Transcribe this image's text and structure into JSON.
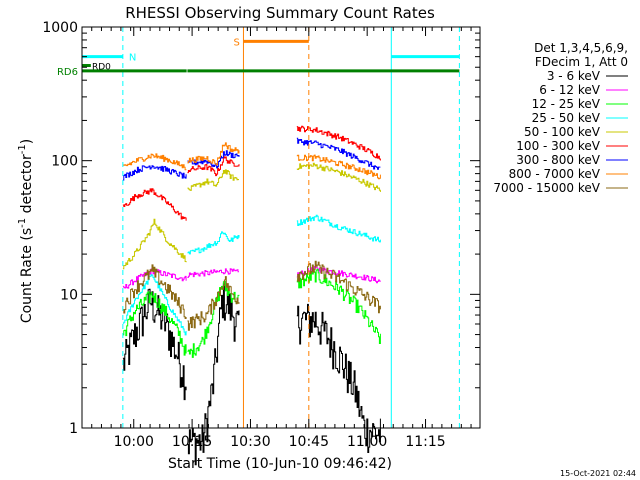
{
  "colors": {
    "background": "#ffffff",
    "axes": "#000000",
    "night": "#00ffff",
    "saa": "#ff8000",
    "attenuator": "#008000"
  },
  "chart_data": {
    "type": "line",
    "title": "RHESSI Observing Summary Count Rates",
    "xlabel": "Start Time (10-Jun-10 09:46:42)",
    "ylabel_main": "Count Rate (s",
    "ylabel_sup": "-1",
    "ylabel_tail": " detector",
    "ylabel_end": ")",
    "ylog": true,
    "ylim": [
      1,
      1000
    ],
    "xlim": [
      "09:46:42",
      "11:29:00"
    ],
    "x_unit": "minutes after 09:46:42",
    "y_ticks": [
      {
        "v": 1,
        "label": "1"
      },
      {
        "v": 10,
        "label": "10"
      },
      {
        "v": 100,
        "label": "100"
      },
      {
        "v": 1000,
        "label": "1000"
      }
    ],
    "x_ticks": [
      {
        "t": 13.3,
        "label": "10:00"
      },
      {
        "t": 28.3,
        "label": "10:15"
      },
      {
        "t": 43.3,
        "label": "10:30"
      },
      {
        "t": 58.3,
        "label": "10:45"
      },
      {
        "t": 73.3,
        "label": "11:00"
      },
      {
        "t": 88.3,
        "label": "11:15"
      }
    ],
    "legend": {
      "position": "right",
      "header": [
        "Det 1,3,4,5,6,9,",
        "FDecim 1, Att 0"
      ]
    },
    "segments": [
      {
        "start": 10.5,
        "end": 26.9
      },
      {
        "start": 27.1,
        "end": 40.5
      },
      {
        "start": 55.2,
        "end": 76.8
      }
    ],
    "series": [
      {
        "name": "3 - 6 keV",
        "color": "#000000",
        "breakpoints": [
          [
            10.5,
            3.0
          ],
          [
            13.5,
            5.0
          ],
          [
            17.5,
            9.0
          ],
          [
            21.5,
            6.0
          ],
          [
            24.5,
            3.5
          ],
          [
            26.9,
            2.2
          ],
          [
            27.1,
            0.8
          ],
          [
            31.0,
            0.8
          ],
          [
            33.5,
            2.0
          ],
          [
            36.0,
            9.5
          ],
          [
            38.0,
            8.0
          ],
          [
            40.5,
            5.5
          ],
          [
            55.2,
            6.5
          ],
          [
            60.0,
            6.5
          ],
          [
            65.0,
            4.0
          ],
          [
            70.0,
            2.0
          ],
          [
            72.5,
            1.0
          ],
          [
            76.8,
            0.9
          ]
        ]
      },
      {
        "name": "6 - 12 keV",
        "color": "#ff00ff",
        "breakpoints": [
          [
            10.5,
            11.0
          ],
          [
            14.0,
            13.0
          ],
          [
            18.0,
            15.0
          ],
          [
            22.0,
            14.0
          ],
          [
            26.9,
            13.0
          ],
          [
            27.1,
            14.0
          ],
          [
            33.0,
            14.5
          ],
          [
            37.0,
            15.0
          ],
          [
            40.5,
            14.5
          ],
          [
            55.2,
            14.0
          ],
          [
            60.0,
            15.5
          ],
          [
            66.0,
            14.5
          ],
          [
            72.0,
            13.5
          ],
          [
            76.8,
            12.5
          ]
        ]
      },
      {
        "name": "12 - 25 keV",
        "color": "#00ff00",
        "breakpoints": [
          [
            10.5,
            5.0
          ],
          [
            13.5,
            7.5
          ],
          [
            18.0,
            10.0
          ],
          [
            22.0,
            7.0
          ],
          [
            25.0,
            5.0
          ],
          [
            26.9,
            3.5
          ],
          [
            27.1,
            3.5
          ],
          [
            31.0,
            4.5
          ],
          [
            34.0,
            8.0
          ],
          [
            36.0,
            12.0
          ],
          [
            38.0,
            10.0
          ],
          [
            40.5,
            9.0
          ],
          [
            55.2,
            12.0
          ],
          [
            60.0,
            14.0
          ],
          [
            66.0,
            11.0
          ],
          [
            71.0,
            8.0
          ],
          [
            74.0,
            6.0
          ],
          [
            76.8,
            4.5
          ]
        ]
      },
      {
        "name": "25 - 50 keV",
        "color": "#00ffff",
        "breakpoints": [
          [
            10.5,
            6.0
          ],
          [
            13.5,
            9.0
          ],
          [
            18.0,
            14.0
          ],
          [
            22.0,
            8.5
          ],
          [
            26.9,
            5.0
          ],
          [
            27.1,
            20.0
          ],
          [
            31.0,
            22.0
          ],
          [
            35.0,
            25.0
          ],
          [
            36.0,
            30.0
          ],
          [
            38.0,
            25.0
          ],
          [
            40.5,
            28.0
          ],
          [
            55.2,
            34.0
          ],
          [
            60.0,
            38.0
          ],
          [
            66.0,
            32.0
          ],
          [
            72.0,
            28.0
          ],
          [
            76.8,
            25.0
          ]
        ]
      },
      {
        "name": "50 - 100 keV",
        "color": "#c8c800",
        "breakpoints": [
          [
            10.5,
            16.0
          ],
          [
            13.5,
            20.0
          ],
          [
            17.0,
            28.0
          ],
          [
            18.5,
            35.0
          ],
          [
            22.0,
            25.0
          ],
          [
            26.9,
            18.0
          ],
          [
            27.1,
            60.0
          ],
          [
            32.0,
            70.0
          ],
          [
            34.5,
            65.0
          ],
          [
            36.5,
            85.0
          ],
          [
            38.5,
            75.0
          ],
          [
            40.5,
            72.0
          ],
          [
            55.2,
            90.0
          ],
          [
            60.0,
            92.0
          ],
          [
            66.0,
            82.0
          ],
          [
            72.0,
            70.0
          ],
          [
            76.8,
            60.0
          ]
        ]
      },
      {
        "name": "100 - 300 keV",
        "color": "#ff0000",
        "breakpoints": [
          [
            10.5,
            45.0
          ],
          [
            14.0,
            55.0
          ],
          [
            18.0,
            60.0
          ],
          [
            22.0,
            48.0
          ],
          [
            26.9,
            35.0
          ],
          [
            27.1,
            85.0
          ],
          [
            32.0,
            90.0
          ],
          [
            34.5,
            80.0
          ],
          [
            36.5,
            105.0
          ],
          [
            38.5,
            95.0
          ],
          [
            40.5,
            95.0
          ],
          [
            55.2,
            175.0
          ],
          [
            60.0,
            170.0
          ],
          [
            66.0,
            150.0
          ],
          [
            72.0,
            125.0
          ],
          [
            76.8,
            105.0
          ]
        ]
      },
      {
        "name": "300 - 800 keV",
        "color": "#0000ff",
        "breakpoints": [
          [
            10.5,
            75.0
          ],
          [
            14.0,
            85.0
          ],
          [
            18.0,
            92.0
          ],
          [
            22.0,
            85.0
          ],
          [
            26.9,
            75.0
          ],
          [
            27.1,
            95.0
          ],
          [
            32.0,
            100.0
          ],
          [
            34.5,
            90.0
          ],
          [
            36.5,
            115.0
          ],
          [
            38.5,
            110.0
          ],
          [
            40.5,
            110.0
          ],
          [
            55.2,
            140.0
          ],
          [
            60.0,
            135.0
          ],
          [
            66.0,
            120.0
          ],
          [
            72.0,
            100.0
          ],
          [
            76.8,
            85.0
          ]
        ]
      },
      {
        "name": "800 - 7000 keV",
        "color": "#ff8000",
        "breakpoints": [
          [
            10.5,
            90.0
          ],
          [
            14.0,
            100.0
          ],
          [
            18.0,
            110.0
          ],
          [
            22.0,
            102.0
          ],
          [
            26.9,
            88.0
          ],
          [
            27.1,
            100.0
          ],
          [
            32.0,
            105.0
          ],
          [
            34.5,
            95.0
          ],
          [
            36.5,
            135.0
          ],
          [
            38.5,
            120.0
          ],
          [
            40.5,
            120.0
          ],
          [
            55.2,
            105.0
          ],
          [
            60.0,
            105.0
          ],
          [
            66.0,
            95.0
          ],
          [
            72.0,
            85.0
          ],
          [
            76.8,
            75.0
          ]
        ]
      },
      {
        "name": "7000 - 15000 keV",
        "color": "#8b6914",
        "breakpoints": [
          [
            10.5,
            8.0
          ],
          [
            13.5,
            11.0
          ],
          [
            18.0,
            15.0
          ],
          [
            22.0,
            11.0
          ],
          [
            26.9,
            7.0
          ],
          [
            27.1,
            6.0
          ],
          [
            32.0,
            7.0
          ],
          [
            35.0,
            10.0
          ],
          [
            36.5,
            13.0
          ],
          [
            38.5,
            10.0
          ],
          [
            40.5,
            9.0
          ],
          [
            55.2,
            14.0
          ],
          [
            60.0,
            16.0
          ],
          [
            66.0,
            13.0
          ],
          [
            72.0,
            10.0
          ],
          [
            76.8,
            8.0
          ]
        ]
      }
    ],
    "flags": {
      "night": {
        "label": "N",
        "color": "#00ffff",
        "value": 600,
        "intervals": [
          [
            0,
            10.5
          ],
          [
            79.5,
            97.0
          ]
        ],
        "boundaries": [
          10.5,
          79.5,
          97.0
        ]
      },
      "saa": {
        "label": "S",
        "color": "#ff8000",
        "value": 780,
        "intervals": [
          [
            41.5,
            58.3
          ]
        ],
        "boundaries": [
          41.5,
          58.3
        ]
      },
      "rd0": {
        "label": "RD0",
        "color": "#008000",
        "value": 515,
        "intervals": [
          [
            0,
            1.5
          ]
        ]
      },
      "rd6": {
        "label": "RD6",
        "color": "#008000",
        "value": 470,
        "intervals": [
          [
            0,
            26.9
          ],
          [
            27.1,
            97.0
          ]
        ]
      }
    }
  },
  "footer": {
    "timestamp": "15-Oct-2021 02:44"
  }
}
